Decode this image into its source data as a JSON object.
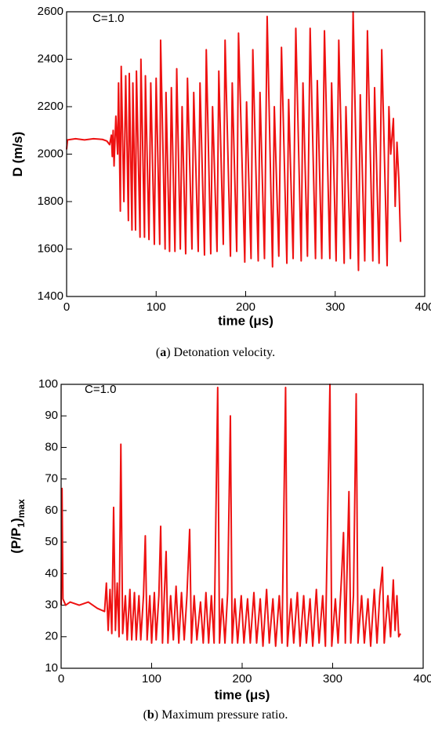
{
  "chart_data": [
    {
      "type": "line",
      "annotation": "C=1.0",
      "xlabel": "time (μs)",
      "ylabel": [
        "D (m/s)"
      ],
      "caption": [
        "(",
        "a",
        ") Detonation velocity."
      ],
      "color": "#ee1111",
      "xlim": [
        0,
        400
      ],
      "xticks": [
        0,
        100,
        200,
        300,
        400
      ],
      "ylim": [
        1400,
        2600
      ],
      "yticks": [
        1400,
        1600,
        1800,
        2000,
        2200,
        2400,
        2600
      ],
      "x": [
        0,
        1,
        10,
        20,
        30,
        40,
        45,
        48,
        50,
        51,
        52,
        53,
        55,
        57,
        58,
        60,
        61,
        64,
        66,
        69,
        70,
        73,
        74,
        77,
        78,
        82,
        83,
        87,
        88,
        92,
        94,
        98,
        100,
        104,
        105,
        110,
        111,
        115,
        117,
        121,
        123,
        127,
        129,
        133,
        135,
        140,
        142,
        147,
        149,
        154,
        156,
        161,
        163,
        168,
        170,
        175,
        177,
        183,
        185,
        190,
        192,
        199,
        201,
        206,
        208,
        214,
        216,
        221,
        224,
        230,
        232,
        237,
        240,
        246,
        248,
        253,
        256,
        262,
        264,
        269,
        272,
        278,
        280,
        285,
        288,
        294,
        296,
        301,
        304,
        310,
        312,
        317,
        320,
        326,
        328,
        333,
        336,
        342,
        344,
        349,
        352,
        358,
        360,
        362,
        365,
        367,
        369,
        371,
        373
      ],
      "values": [
        2020,
        2060,
        2065,
        2060,
        2065,
        2062,
        2055,
        2040,
        2080,
        1990,
        2100,
        1950,
        2160,
        2000,
        2300,
        1760,
        2370,
        1800,
        2330,
        1720,
        2340,
        1680,
        2300,
        1680,
        2350,
        1650,
        2400,
        1650,
        2330,
        1640,
        2300,
        1620,
        2320,
        1620,
        2480,
        1600,
        2260,
        1590,
        2280,
        1590,
        2360,
        1600,
        2200,
        1580,
        2320,
        1600,
        2260,
        1590,
        2300,
        1575,
        2440,
        1580,
        2200,
        1590,
        2350,
        1620,
        2480,
        1570,
        2300,
        1590,
        2510,
        1545,
        2220,
        1560,
        2440,
        1550,
        2260,
        1560,
        2580,
        1525,
        2200,
        1570,
        2450,
        1540,
        2230,
        1560,
        2530,
        1550,
        2300,
        1570,
        2530,
        1560,
        2310,
        1560,
        2520,
        1560,
        2300,
        1550,
        2480,
        1540,
        2200,
        1560,
        2600,
        1510,
        2250,
        1550,
        2520,
        1550,
        2280,
        1540,
        2440,
        1530,
        2200,
        2000,
        2150,
        1780,
        2050,
        1900,
        1630
      ]
    },
    {
      "type": "line",
      "annotation": "C=1.0",
      "xlabel": "time (μs)",
      "ylabel": [
        "(P/P",
        "1",
        ")",
        "max"
      ],
      "caption": [
        "(",
        "b",
        ") Maximum pressure ratio."
      ],
      "color": "#ee1111",
      "xlim": [
        0,
        400
      ],
      "xticks": [
        0,
        100,
        200,
        300,
        400
      ],
      "ylim": [
        10,
        100
      ],
      "yticks": [
        10,
        20,
        30,
        40,
        50,
        60,
        70,
        80,
        90,
        100
      ],
      "x": [
        0,
        1,
        2,
        5,
        10,
        20,
        30,
        40,
        48,
        50,
        52,
        54,
        56,
        58,
        60,
        62,
        64,
        66,
        68,
        71,
        73,
        76,
        78,
        81,
        83,
        86,
        88,
        91,
        93,
        95,
        98,
        100,
        103,
        105,
        108,
        110,
        112,
        114,
        116,
        118,
        121,
        124,
        127,
        130,
        133,
        136,
        139,
        142,
        144,
        147,
        150,
        154,
        157,
        160,
        163,
        166,
        169,
        173,
        175,
        178,
        181,
        184,
        187,
        189,
        192,
        195,
        199,
        202,
        206,
        209,
        213,
        216,
        220,
        223,
        227,
        230,
        234,
        237,
        241,
        244,
        248,
        250,
        254,
        257,
        261,
        264,
        268,
        271,
        275,
        278,
        282,
        285,
        289,
        292,
        297,
        299,
        303,
        306,
        310,
        312,
        314,
        318,
        320,
        323,
        326,
        328,
        332,
        335,
        339,
        342,
        346,
        349,
        352,
        355,
        357,
        361,
        364,
        367,
        369,
        371,
        373,
        375
      ],
      "values": [
        30,
        67,
        32,
        30,
        31,
        30,
        31,
        29,
        28,
        37,
        22,
        35,
        21,
        61,
        22,
        37,
        20,
        81,
        21,
        33,
        19,
        35,
        19,
        34,
        19,
        33,
        19,
        33,
        52,
        19,
        33,
        18,
        34,
        19,
        33,
        55,
        18,
        33,
        47,
        18,
        33,
        19,
        36,
        18,
        34,
        19,
        33,
        54,
        18,
        33,
        19,
        31,
        18,
        34,
        18,
        33,
        18,
        99,
        18,
        32,
        18,
        34,
        90,
        18,
        32,
        18,
        33,
        18,
        32,
        18,
        34,
        18,
        32,
        17,
        35,
        18,
        32,
        17,
        33,
        18,
        99,
        17,
        32,
        18,
        34,
        17,
        33,
        18,
        32,
        17,
        35,
        18,
        33,
        17,
        100,
        17,
        32,
        18,
        40,
        53,
        18,
        66,
        18,
        33,
        97,
        18,
        33,
        18,
        32,
        17,
        35,
        18,
        33,
        42,
        18,
        33,
        20,
        38,
        22,
        33,
        20,
        21
      ]
    }
  ]
}
